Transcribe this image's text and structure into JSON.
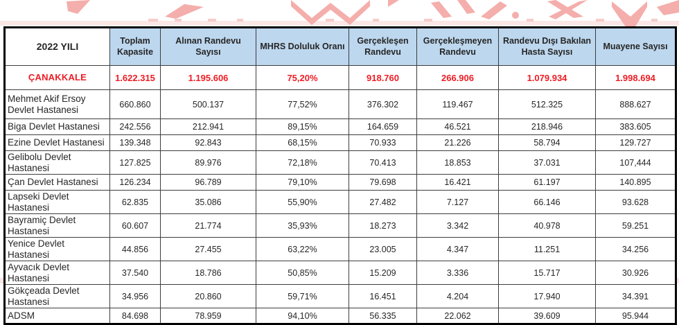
{
  "colors": {
    "header_bg": "#BDD7EE",
    "accent_red": "#ED1C24",
    "watermark_pink": "#F4AEAB",
    "grid_border": "#000000"
  },
  "table": {
    "title_cell": "2022 YILI",
    "columns": [
      "Toplam Kapasite",
      "Alınan Randevu Sayısı",
      "MHRS Doluluk Oranı",
      "Gerçekleşen Randevu",
      "Gerçekleşmeyen Randevu",
      "Randevu Dışı Bakılan Hasta Sayısı",
      "Muayene Sayısı"
    ],
    "summary_row": {
      "label": "ÇANAKKALE",
      "values": [
        "1.622.315",
        "1.195.606",
        "75,20%",
        "918.760",
        "266.906",
        "1.079.934",
        "1.998.694"
      ]
    },
    "rows": [
      {
        "label": "Mehmet Akif Ersoy  Devlet Hastanesi",
        "values": [
          "660.860",
          "500.137",
          "77,52%",
          "376.302",
          "119.467",
          "512.325",
          "888.627"
        ]
      },
      {
        "label": "Biga Devlet Hastanesi",
        "values": [
          "242.556",
          "212.941",
          "89,15%",
          "164.659",
          "46.521",
          "218.946",
          "383.605"
        ]
      },
      {
        "label": "Ezine Devlet Hastanesi",
        "values": [
          "139.348",
          "92.843",
          "68,15%",
          "70.933",
          "21.226",
          "58.794",
          "129.727"
        ]
      },
      {
        "label": "Gelibolu Devlet Hastanesi",
        "values": [
          "127.825",
          "89.976",
          "72,18%",
          "70.413",
          "18.853",
          "37.031",
          "107,444"
        ]
      },
      {
        "label": "Çan Devlet Hastanesi",
        "values": [
          "126.234",
          "96.789",
          "79,10%",
          "79.698",
          "16.421",
          "61.197",
          "140.895"
        ]
      },
      {
        "label": "Lapseki Devlet Hastanesi",
        "values": [
          "62.835",
          "35.086",
          "55,90%",
          "27.482",
          "7.127",
          "66.146",
          "93.628"
        ]
      },
      {
        "label": "Bayramiç Devlet Hastanesi",
        "values": [
          "60.607",
          "21.774",
          "35,93%",
          "18.273",
          "3.342",
          "40.978",
          "59.251"
        ]
      },
      {
        "label": "Yenice Devlet Hastanesi",
        "values": [
          "44.856",
          "27.455",
          "63,22%",
          "23.005",
          "4.347",
          "11.251",
          "34.256"
        ]
      },
      {
        "label": "Ayvacık Devlet Hastanesi",
        "values": [
          "37.540",
          "18.786",
          "50,85%",
          "15.209",
          "3.336",
          "15.717",
          "30.926"
        ]
      },
      {
        "label": "Gökçeada Devlet Hastanesi",
        "values": [
          "34.956",
          "20.860",
          "59,71%",
          "16.451",
          "4.204",
          "17.940",
          "34.391"
        ]
      },
      {
        "label": "ADSM",
        "values": [
          "84.698",
          "78.959",
          "94,10%",
          "56.335",
          "22.062",
          "39.609",
          "95.944"
        ]
      }
    ]
  },
  "chart_data": {
    "type": "table",
    "title": "2022 YILI",
    "columns": [
      "2022 YILI",
      "Toplam Kapasite",
      "Alınan Randevu Sayısı",
      "MHRS Doluluk Oranı",
      "Gerçekleşen Randevu",
      "Gerçekleşmeyen Randevu",
      "Randevu Dışı Bakılan Hasta Sayısı",
      "Muayene Sayısı"
    ],
    "rows": [
      [
        "ÇANAKKALE",
        "1.622.315",
        "1.195.606",
        "75,20%",
        "918.760",
        "266.906",
        "1.079.934",
        "1.998.694"
      ],
      [
        "Mehmet Akif Ersoy Devlet Hastanesi",
        "660.860",
        "500.137",
        "77,52%",
        "376.302",
        "119.467",
        "512.325",
        "888.627"
      ],
      [
        "Biga Devlet Hastanesi",
        "242.556",
        "212.941",
        "89,15%",
        "164.659",
        "46.521",
        "218.946",
        "383.605"
      ],
      [
        "Ezine Devlet Hastanesi",
        "139.348",
        "92.843",
        "68,15%",
        "70.933",
        "21.226",
        "58.794",
        "129.727"
      ],
      [
        "Gelibolu Devlet Hastanesi",
        "127.825",
        "89.976",
        "72,18%",
        "70.413",
        "18.853",
        "37.031",
        "107,444"
      ],
      [
        "Çan Devlet Hastanesi",
        "126.234",
        "96.789",
        "79,10%",
        "79.698",
        "16.421",
        "61.197",
        "140.895"
      ],
      [
        "Lapseki Devlet Hastanesi",
        "62.835",
        "35.086",
        "55,90%",
        "27.482",
        "7.127",
        "66.146",
        "93.628"
      ],
      [
        "Bayramiç Devlet Hastanesi",
        "60.607",
        "21.774",
        "35,93%",
        "18.273",
        "3.342",
        "40.978",
        "59.251"
      ],
      [
        "Yenice Devlet Hastanesi",
        "44.856",
        "27.455",
        "63,22%",
        "23.005",
        "4.347",
        "11.251",
        "34.256"
      ],
      [
        "Ayvacık Devlet Hastanesi",
        "37.540",
        "18.786",
        "50,85%",
        "15.209",
        "3.336",
        "15.717",
        "30.926"
      ],
      [
        "Gökçeada Devlet Hastanesi",
        "34.956",
        "20.860",
        "59,71%",
        "16.451",
        "4.204",
        "17.940",
        "34.391"
      ],
      [
        "ADSM",
        "84.698",
        "78.959",
        "94,10%",
        "56.335",
        "22.062",
        "39.609",
        "95.944"
      ]
    ]
  }
}
